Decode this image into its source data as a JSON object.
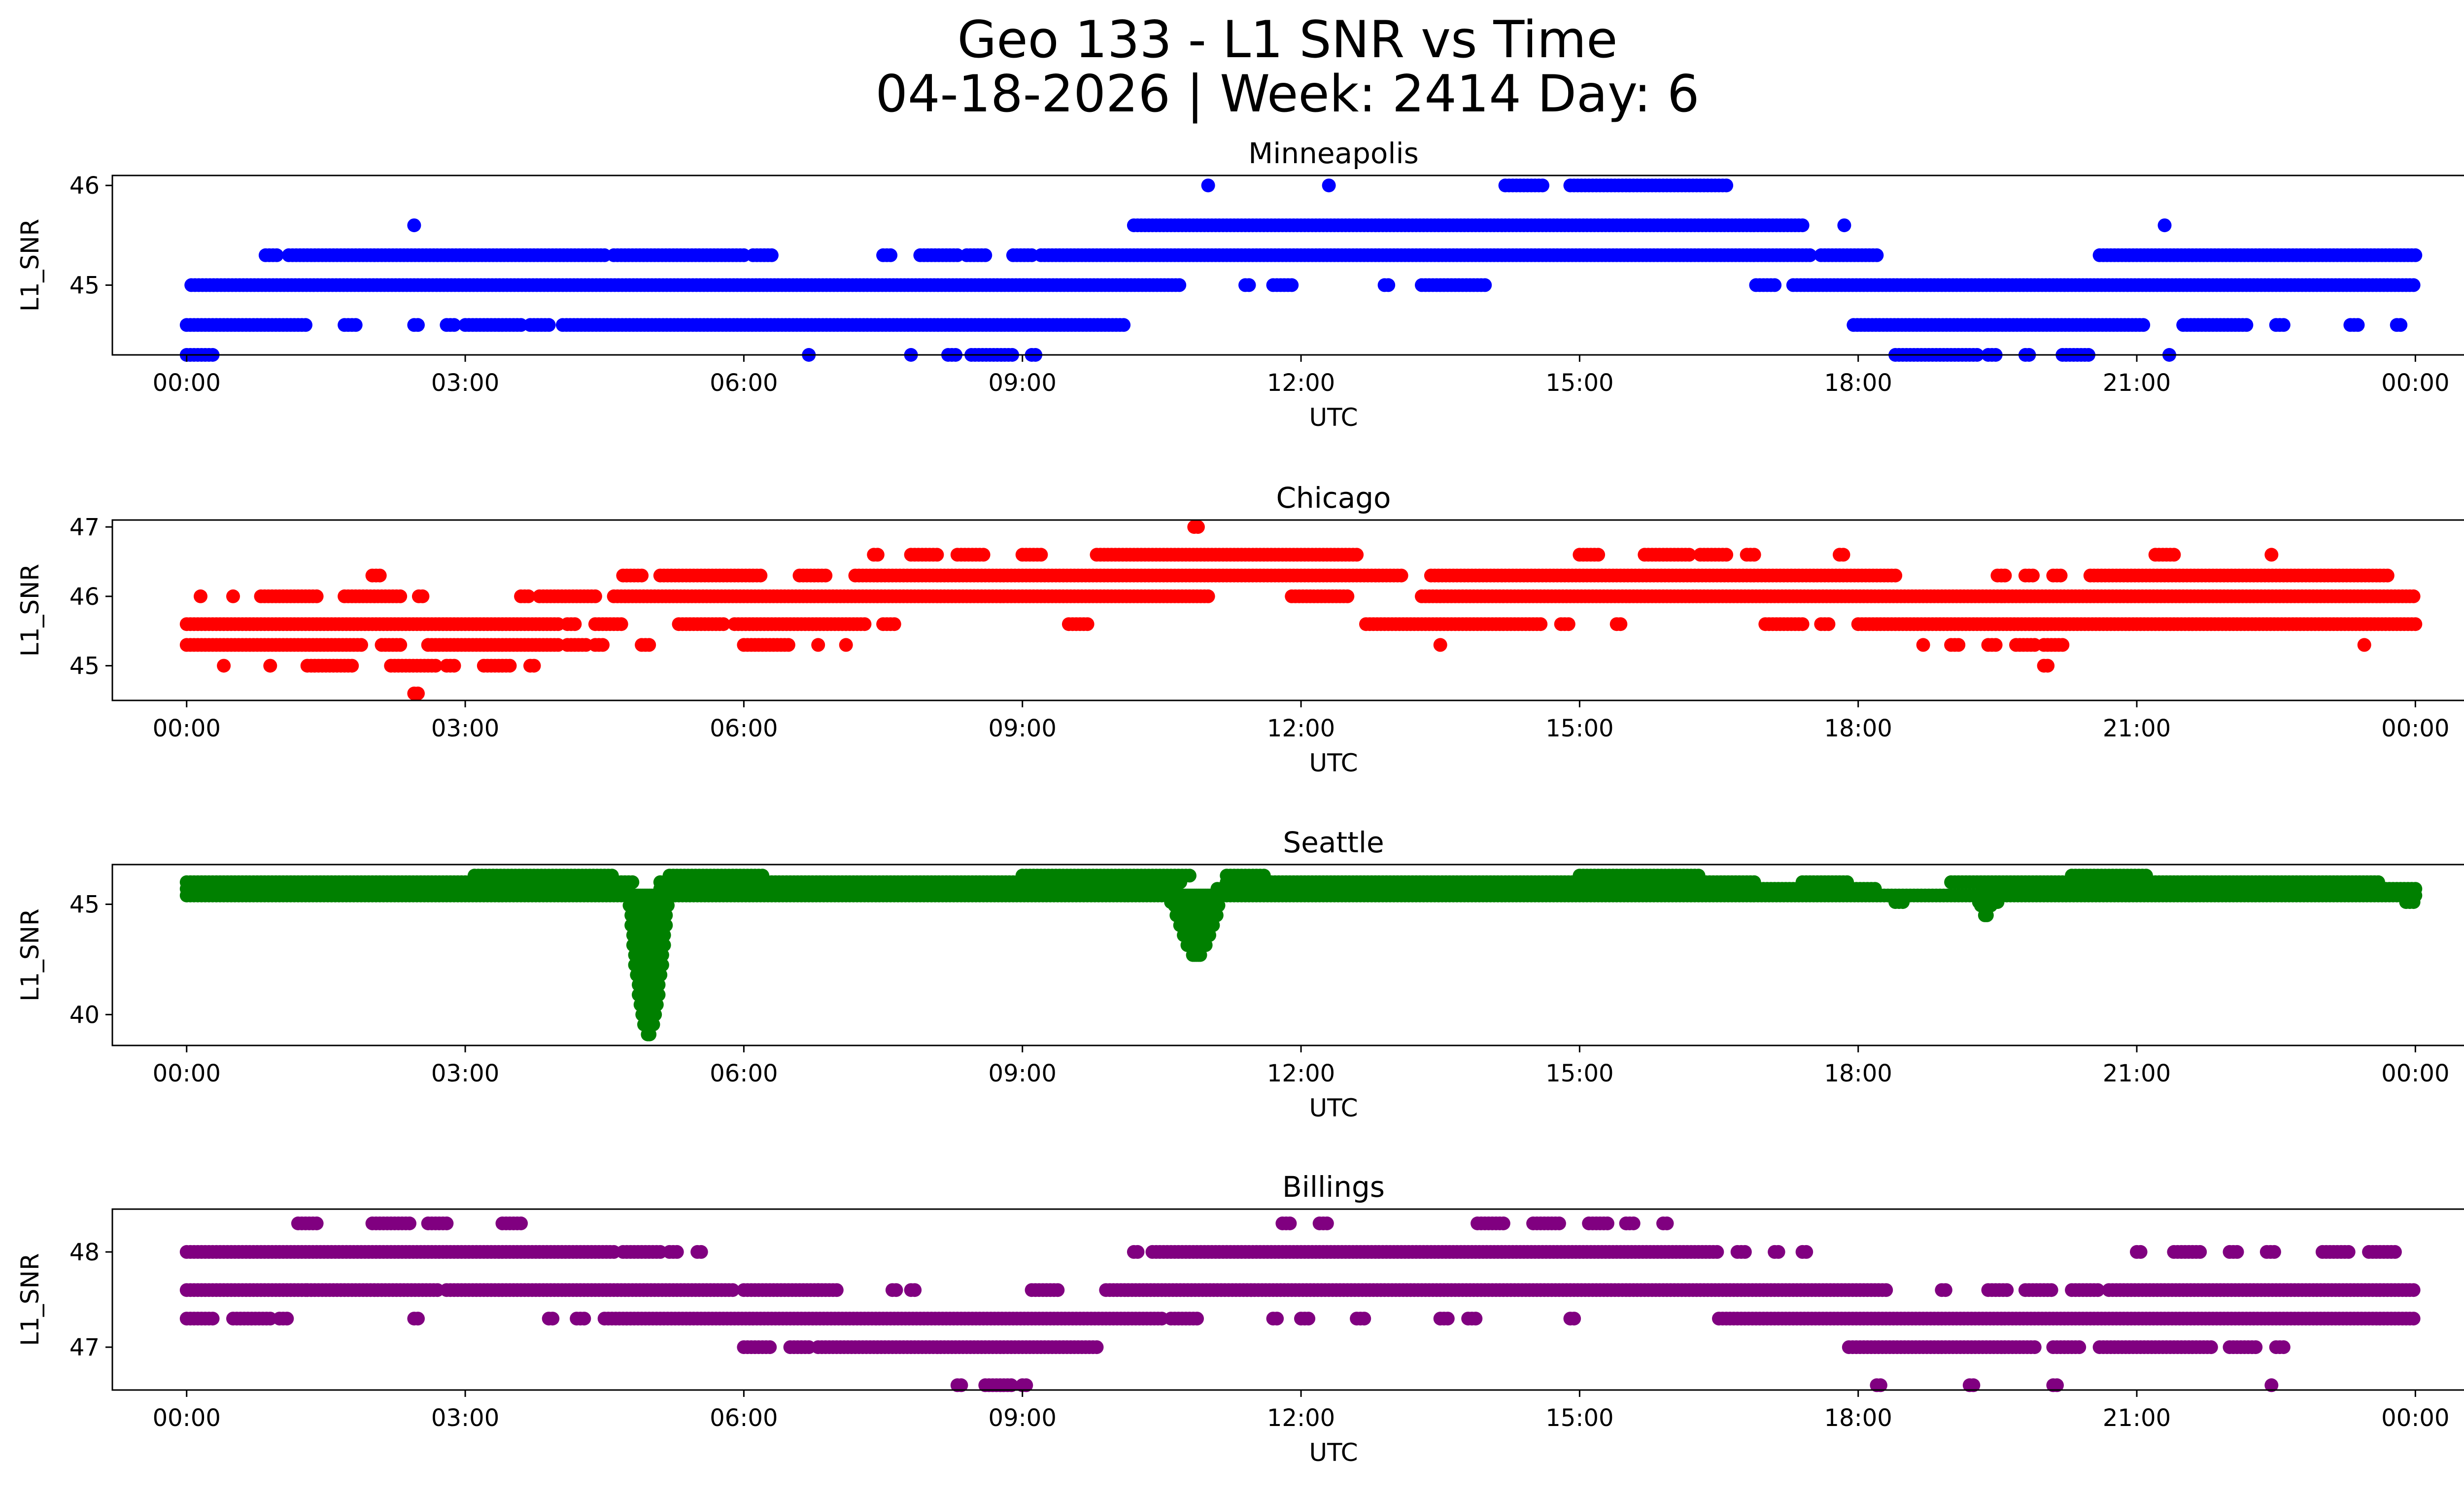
{
  "figure": {
    "title_line1": "Geo 133 - L1 SNR vs Time",
    "title_line2": "04-18-2026 | Week: 2414 Day: 6"
  },
  "chart_data": [
    {
      "type": "scatter",
      "title": "Minneapolis",
      "xlabel": "UTC",
      "ylabel": "L1_SNR",
      "color": "#0000ff",
      "xlim": [
        -0.8,
        25.5
      ],
      "ylim": [
        44.3,
        46.1
      ],
      "xticks": [
        0,
        3,
        6,
        9,
        12,
        15,
        18,
        21,
        24
      ],
      "xticklabels": [
        "00:00",
        "03:00",
        "06:00",
        "09:00",
        "12:00",
        "15:00",
        "18:00",
        "21:00",
        "00:00"
      ],
      "yticks": [
        45,
        46
      ],
      "yticklabels": [
        "45",
        "46"
      ],
      "bands": [
        {
          "y": 46.0,
          "ranges": [
            [
              11.0,
              11.0
            ],
            [
              12.3,
              12.3
            ],
            [
              14.2,
              14.6
            ],
            [
              14.9,
              16.6
            ]
          ]
        },
        {
          "y": 45.6,
          "ranges": [
            [
              2.45,
              2.45
            ],
            [
              10.2,
              17.4
            ],
            [
              17.85,
              17.85
            ],
            [
              21.3,
              21.3
            ]
          ]
        },
        {
          "y": 45.3,
          "ranges": [
            [
              0.85,
              1.0
            ],
            [
              1.1,
              4.5
            ],
            [
              4.6,
              6.0
            ],
            [
              6.1,
              6.3
            ],
            [
              7.5,
              7.6
            ],
            [
              7.9,
              8.3
            ],
            [
              8.4,
              8.6
            ],
            [
              8.9,
              9.1
            ],
            [
              9.2,
              17.5
            ],
            [
              17.6,
              18.2
            ],
            [
              20.6,
              24.0
            ]
          ]
        },
        {
          "y": 45.0,
          "ranges": [
            [
              0.05,
              10.7
            ],
            [
              11.4,
              11.45
            ],
            [
              11.7,
              11.9
            ],
            [
              12.9,
              12.95
            ],
            [
              13.3,
              14.0
            ],
            [
              16.9,
              17.1
            ],
            [
              17.3,
              24.0
            ]
          ]
        },
        {
          "y": 44.6,
          "ranges": [
            [
              0.0,
              1.3
            ],
            [
              1.7,
              1.85
            ],
            [
              2.45,
              2.5
            ],
            [
              2.8,
              2.9
            ],
            [
              3.0,
              3.6
            ],
            [
              3.7,
              3.9
            ],
            [
              4.05,
              10.1
            ],
            [
              17.95,
              21.1
            ],
            [
              21.5,
              22.2
            ],
            [
              22.5,
              22.6
            ],
            [
              23.3,
              23.4
            ],
            [
              23.8,
              23.85
            ]
          ]
        },
        {
          "y": 44.3,
          "ranges": [
            [
              0.0,
              0.3
            ],
            [
              6.7,
              6.7
            ],
            [
              7.8,
              7.8
            ],
            [
              8.2,
              8.3
            ],
            [
              8.45,
              8.9
            ],
            [
              9.1,
              9.15
            ],
            [
              18.4,
              19.3
            ],
            [
              19.4,
              19.5
            ],
            [
              19.8,
              19.85
            ],
            [
              20.2,
              20.5
            ],
            [
              21.35,
              21.35
            ]
          ]
        }
      ]
    },
    {
      "type": "scatter",
      "title": "Chicago",
      "xlabel": "UTC",
      "ylabel": "L1_SNR",
      "color": "#ff0000",
      "xlim": [
        -0.8,
        25.5
      ],
      "ylim": [
        44.5,
        47.1
      ],
      "xticks": [
        0,
        3,
        6,
        9,
        12,
        15,
        18,
        21,
        24
      ],
      "xticklabels": [
        "00:00",
        "03:00",
        "06:00",
        "09:00",
        "12:00",
        "15:00",
        "18:00",
        "21:00",
        "00:00"
      ],
      "yticks": [
        45,
        46,
        47
      ],
      "yticklabels": [
        "45",
        "46",
        "47"
      ],
      "bands": [
        {
          "y": 47.0,
          "ranges": [
            [
              10.85,
              10.9
            ]
          ]
        },
        {
          "y": 46.6,
          "ranges": [
            [
              7.4,
              7.45
            ],
            [
              7.8,
              8.1
            ],
            [
              8.3,
              8.6
            ],
            [
              9.0,
              9.2
            ],
            [
              9.8,
              12.6
            ],
            [
              15.0,
              15.2
            ],
            [
              15.7,
              16.2
            ],
            [
              16.3,
              16.6
            ],
            [
              16.8,
              16.9
            ],
            [
              17.8,
              17.85
            ],
            [
              21.2,
              21.4
            ],
            [
              22.45,
              22.45
            ]
          ]
        },
        {
          "y": 46.3,
          "ranges": [
            [
              2.0,
              2.1
            ],
            [
              4.7,
              4.9
            ],
            [
              5.1,
              6.2
            ],
            [
              6.6,
              6.9
            ],
            [
              7.2,
              13.1
            ],
            [
              13.4,
              18.4
            ],
            [
              19.5,
              19.6
            ],
            [
              19.8,
              19.9
            ],
            [
              20.1,
              20.2
            ],
            [
              20.5,
              23.7
            ]
          ]
        },
        {
          "y": 46.0,
          "ranges": [
            [
              0.15,
              0.15
            ],
            [
              0.5,
              0.5
            ],
            [
              0.8,
              1.4
            ],
            [
              1.7,
              2.3
            ],
            [
              2.5,
              2.55
            ],
            [
              3.6,
              3.7
            ],
            [
              3.8,
              4.4
            ],
            [
              4.6,
              11.0
            ],
            [
              11.9,
              12.5
            ],
            [
              13.3,
              24.0
            ]
          ]
        },
        {
          "y": 45.6,
          "ranges": [
            [
              0.0,
              4.0
            ],
            [
              4.1,
              4.2
            ],
            [
              4.4,
              4.7
            ],
            [
              5.3,
              5.8
            ],
            [
              5.9,
              7.3
            ],
            [
              7.5,
              7.65
            ],
            [
              9.5,
              9.7
            ],
            [
              12.7,
              14.6
            ],
            [
              14.8,
              14.9
            ],
            [
              15.4,
              15.45
            ],
            [
              17.0,
              17.4
            ],
            [
              17.6,
              17.7
            ],
            [
              18.0,
              24.0
            ]
          ]
        },
        {
          "y": 45.3,
          "ranges": [
            [
              0.0,
              1.9
            ],
            [
              2.1,
              2.3
            ],
            [
              2.6,
              4.0
            ],
            [
              4.1,
              4.3
            ],
            [
              4.4,
              4.5
            ],
            [
              4.9,
              5.0
            ],
            [
              6.0,
              6.5
            ],
            [
              6.8,
              6.8
            ],
            [
              7.1,
              7.1
            ],
            [
              13.5,
              13.5
            ],
            [
              18.7,
              18.7
            ],
            [
              19.0,
              19.1
            ],
            [
              19.4,
              19.5
            ],
            [
              19.7,
              19.9
            ],
            [
              20.0,
              20.2
            ],
            [
              23.45,
              23.45
            ]
          ]
        },
        {
          "y": 45.0,
          "ranges": [
            [
              0.4,
              0.4
            ],
            [
              0.9,
              0.9
            ],
            [
              1.3,
              1.8
            ],
            [
              2.2,
              2.7
            ],
            [
              2.8,
              2.9
            ],
            [
              3.2,
              3.5
            ],
            [
              3.7,
              3.75
            ],
            [
              20.0,
              20.05
            ]
          ]
        },
        {
          "y": 44.6,
          "ranges": [
            [
              2.45,
              2.5
            ]
          ]
        }
      ]
    },
    {
      "type": "scatter",
      "title": "Seattle",
      "xlabel": "UTC",
      "ylabel": "L1_SNR",
      "color": "#008000",
      "xlim": [
        -0.8,
        25.5
      ],
      "ylim": [
        38.6,
        46.8
      ],
      "xticks": [
        0,
        3,
        6,
        9,
        12,
        15,
        18,
        21,
        24
      ],
      "xticklabels": [
        "00:00",
        "03:00",
        "06:00",
        "09:00",
        "12:00",
        "15:00",
        "18:00",
        "21:00",
        "00:00"
      ],
      "yticks": [
        40,
        45
      ],
      "yticklabels": [
        "40",
        "45"
      ],
      "bands": [
        {
          "y": 46.3,
          "ranges": [
            [
              3.1,
              4.6
            ],
            [
              5.2,
              6.2
            ],
            [
              9.0,
              10.8
            ],
            [
              11.2,
              11.6
            ],
            [
              15.0,
              16.3
            ],
            [
              20.3,
              21.1
            ]
          ]
        },
        {
          "y": 46.0,
          "ranges": [
            [
              0.0,
              4.8
            ],
            [
              5.1,
              10.7
            ],
            [
              11.2,
              16.9
            ],
            [
              17.4,
              17.9
            ],
            [
              19.0,
              23.6
            ]
          ]
        },
        {
          "y": 45.7,
          "ranges": [
            [
              0.0,
              4.75
            ],
            [
              5.1,
              10.6
            ],
            [
              11.1,
              18.2
            ],
            [
              19.4,
              24.0
            ]
          ]
        },
        {
          "y": 45.4,
          "ranges": [
            [
              0.0,
              4.7
            ],
            [
              5.1,
              10.5
            ],
            [
              11.2,
              24.0
            ]
          ]
        },
        {
          "y": 45.1,
          "ranges": [
            [
              4.8,
              4.9
            ],
            [
              5.05,
              5.15
            ],
            [
              10.6,
              10.7
            ],
            [
              18.4,
              18.5
            ],
            [
              19.3,
              19.5
            ],
            [
              23.9,
              24.0
            ]
          ]
        }
      ],
      "dips": [
        {
          "x0": 4.75,
          "x1": 5.2,
          "min": 39.0
        },
        {
          "x0": 10.6,
          "x1": 11.15,
          "min": 42.6
        },
        {
          "x0": 19.3,
          "x1": 19.45,
          "min": 44.3
        }
      ]
    },
    {
      "type": "scatter",
      "title": "Billings",
      "xlabel": "UTC",
      "ylabel": "L1_SNR",
      "color": "#800080",
      "xlim": [
        -0.8,
        25.5
      ],
      "ylim": [
        46.55,
        48.45
      ],
      "xticks": [
        0,
        3,
        6,
        9,
        12,
        15,
        18,
        21,
        24
      ],
      "xticklabels": [
        "00:00",
        "03:00",
        "06:00",
        "09:00",
        "12:00",
        "15:00",
        "18:00",
        "21:00",
        "00:00"
      ],
      "yticks": [
        47,
        48
      ],
      "yticklabels": [
        "47",
        "48"
      ],
      "bands": [
        {
          "y": 48.3,
          "ranges": [
            [
              1.2,
              1.4
            ],
            [
              2.0,
              2.4
            ],
            [
              2.6,
              2.8
            ],
            [
              3.4,
              3.6
            ],
            [
              11.8,
              11.9
            ],
            [
              12.2,
              12.3
            ],
            [
              13.9,
              14.2
            ],
            [
              14.5,
              14.8
            ],
            [
              15.1,
              15.3
            ],
            [
              15.5,
              15.6
            ],
            [
              15.9,
              15.95
            ]
          ]
        },
        {
          "y": 48.0,
          "ranges": [
            [
              0.0,
              4.6
            ],
            [
              4.7,
              5.1
            ],
            [
              5.2,
              5.3
            ],
            [
              5.5,
              5.55
            ],
            [
              10.2,
              10.25
            ],
            [
              10.4,
              16.5
            ],
            [
              16.7,
              16.8
            ],
            [
              17.1,
              17.15
            ],
            [
              17.4,
              17.45
            ],
            [
              21.0,
              21.05
            ],
            [
              21.4,
              21.7
            ],
            [
              22.0,
              22.1
            ],
            [
              22.4,
              22.5
            ],
            [
              23.0,
              23.3
            ],
            [
              23.5,
              23.8
            ]
          ]
        },
        {
          "y": 47.6,
          "ranges": [
            [
              0.0,
              1.3
            ],
            [
              1.3,
              2.7
            ],
            [
              2.8,
              5.9
            ],
            [
              6.0,
              6.8
            ],
            [
              6.8,
              7.0
            ],
            [
              7.6,
              7.65
            ],
            [
              7.8,
              7.85
            ],
            [
              9.1,
              9.4
            ],
            [
              9.9,
              18.3
            ],
            [
              18.9,
              18.95
            ],
            [
              19.4,
              19.6
            ],
            [
              19.8,
              20.1
            ],
            [
              20.3,
              20.6
            ],
            [
              20.7,
              24.0
            ]
          ]
        },
        {
          "y": 47.3,
          "ranges": [
            [
              0.0,
              0.3
            ],
            [
              0.5,
              0.9
            ],
            [
              1.0,
              1.1
            ],
            [
              2.45,
              2.5
            ],
            [
              3.9,
              3.95
            ],
            [
              4.2,
              4.3
            ],
            [
              4.5,
              10.5
            ],
            [
              10.6,
              10.9
            ],
            [
              11.7,
              11.75
            ],
            [
              12.0,
              12.1
            ],
            [
              12.6,
              12.7
            ],
            [
              13.5,
              13.6
            ],
            [
              13.8,
              13.9
            ],
            [
              14.9,
              14.95
            ],
            [
              16.5,
              24.0
            ]
          ]
        },
        {
          "y": 47.0,
          "ranges": [
            [
              6.0,
              6.3
            ],
            [
              6.5,
              6.7
            ],
            [
              6.8,
              9.8
            ],
            [
              17.9,
              19.9
            ],
            [
              20.1,
              20.4
            ],
            [
              20.6,
              21.8
            ],
            [
              22.0,
              22.3
            ],
            [
              22.5,
              22.6
            ]
          ]
        },
        {
          "y": 46.6,
          "ranges": [
            [
              8.3,
              8.35
            ],
            [
              8.6,
              8.9
            ],
            [
              9.0,
              9.05
            ],
            [
              18.2,
              18.25
            ],
            [
              19.2,
              19.25
            ],
            [
              20.1,
              20.15
            ],
            [
              22.45,
              22.45
            ]
          ]
        }
      ]
    }
  ]
}
